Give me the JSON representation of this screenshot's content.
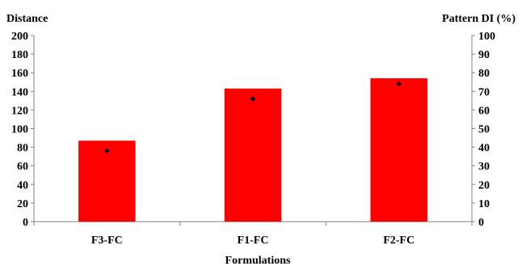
{
  "chart_data": {
    "type": "bar",
    "title": "",
    "xlabel": "Formulations",
    "ylabel_left": "Distance",
    "ylabel_right": "Pattern DI (%)",
    "categories": [
      "F3-FC",
      "F1-FC",
      "F2-FC"
    ],
    "ylim_left": [
      0,
      200
    ],
    "ylim_right": [
      0,
      100
    ],
    "yticks_left": [
      "0",
      "20",
      "40",
      "60",
      "80",
      "100",
      "120",
      "140",
      "160",
      "180",
      "200"
    ],
    "yticks_right": [
      "0",
      "10",
      "20",
      "30",
      "40",
      "50",
      "60",
      "70",
      "80",
      "90",
      "100"
    ],
    "grid": false,
    "legend": "none",
    "series": [
      {
        "axis": "left",
        "type": "bar",
        "color": "#ff0000",
        "values": [
          87,
          143,
          154
        ]
      },
      {
        "axis": "right",
        "type": "scatter",
        "marker": "diamond",
        "color": "#000000",
        "values": [
          38,
          66,
          74
        ]
      }
    ]
  }
}
